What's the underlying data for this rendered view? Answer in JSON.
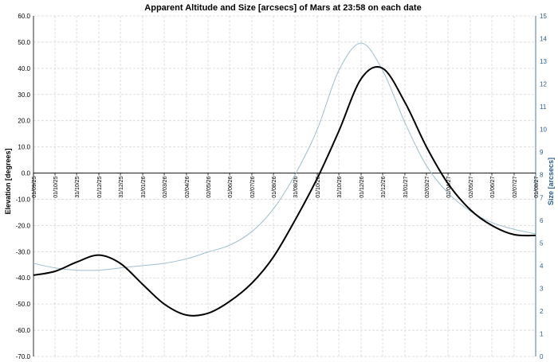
{
  "chart_data": {
    "type": "line",
    "title": "Apparent Altitude and Size [arcsecs] of Mars at 23:58 on each date",
    "ylabel": "Elevation [degrees]",
    "y2label": "Size [arcsecs]",
    "xlabel": "",
    "ylim": [
      -70,
      60
    ],
    "y2lim": [
      0,
      15
    ],
    "grid": true,
    "y_ticks": [
      "60.0",
      "50.0",
      "40.0",
      "30.0",
      "20.0",
      "10.0",
      "0.0",
      "-10.0",
      "-20.0",
      "-30.0",
      "-40.0",
      "-50.0",
      "-60.0",
      "-70.0"
    ],
    "y2_ticks": [
      "15",
      "14",
      "13",
      "12",
      "11",
      "10",
      "9",
      "8",
      "7",
      "6",
      "5",
      "4",
      "3",
      "2",
      "1",
      "0"
    ],
    "x_ticks": [
      "01/09/25",
      "01/10/25",
      "31/10/25",
      "01/12/25",
      "31/12/25",
      "31/01/26",
      "02/03/26",
      "02/04/26",
      "02/05/26",
      "01/06/26",
      "02/07/26",
      "01/08/26",
      "31/08/26",
      "01/10/26",
      "31/10/26",
      "01/12/26",
      "31/12/26",
      "31/01/27",
      "02/03/27",
      "01/04/27",
      "02/05/27",
      "01/06/27",
      "02/07/27",
      "01/08/27"
    ],
    "x_range": [
      "01/09/25",
      "01/08/27"
    ],
    "series": [
      {
        "axis": "left",
        "color": "#000000",
        "x": [
          "01/09/25",
          "01/10/25",
          "31/10/25",
          "01/12/25",
          "31/12/25",
          "31/01/26",
          "02/03/26",
          "02/04/26",
          "02/05/26",
          "01/06/26",
          "02/07/26",
          "01/08/26",
          "31/08/26",
          "01/10/26",
          "31/10/26",
          "01/12/26",
          "31/12/26",
          "31/01/27",
          "02/03/27",
          "01/04/27",
          "02/05/27",
          "01/06/27",
          "02/07/27",
          "01/08/27"
        ],
        "values": [
          -39.0,
          -37.5,
          -34.0,
          -31.3,
          -34.5,
          -42.5,
          -50.0,
          -54.2,
          -53.5,
          -49.0,
          -42.0,
          -32.0,
          -18.0,
          -2.0,
          16.0,
          36.0,
          40.0,
          27.0,
          10.0,
          -4.0,
          -14.0,
          -20.0,
          -23.5,
          -23.8
        ]
      },
      {
        "axis": "right",
        "color": "#9bbfcf",
        "x": [
          "01/09/25",
          "01/10/25",
          "31/10/25",
          "01/12/25",
          "31/12/25",
          "31/01/26",
          "02/03/26",
          "02/04/26",
          "02/05/26",
          "01/06/26",
          "02/07/26",
          "01/08/26",
          "31/08/26",
          "01/10/26",
          "31/10/26",
          "01/12/26",
          "31/12/26",
          "31/01/27",
          "02/03/27",
          "01/04/27",
          "02/05/27",
          "01/06/27",
          "02/07/27",
          "01/08/27"
        ],
        "values": [
          4.1,
          3.9,
          3.8,
          3.8,
          3.9,
          4.0,
          4.1,
          4.3,
          4.6,
          4.9,
          5.5,
          6.5,
          8.0,
          10.0,
          12.6,
          13.8,
          12.6,
          10.3,
          8.4,
          7.2,
          6.4,
          5.9,
          5.6,
          5.4
        ]
      }
    ]
  }
}
